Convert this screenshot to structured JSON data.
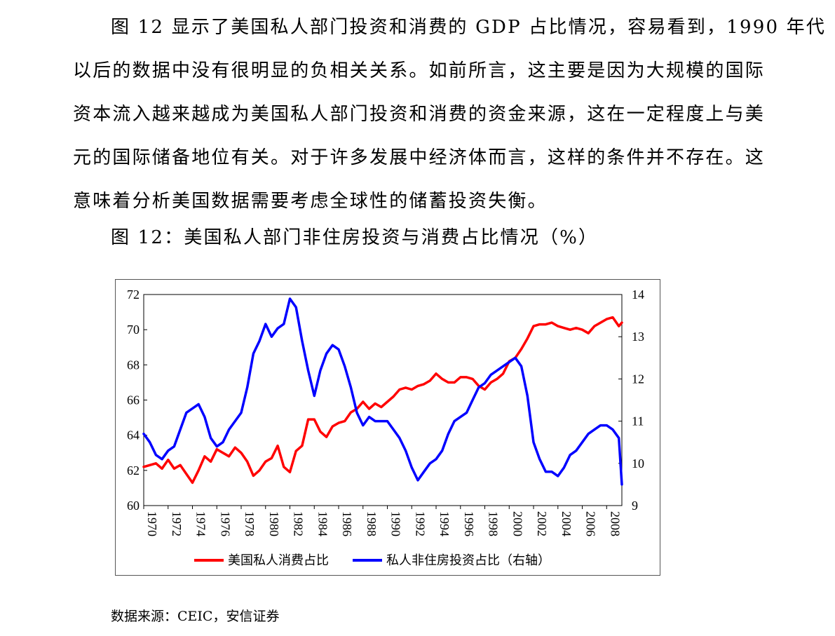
{
  "paragraph": {
    "lines": [
      "图 12 显示了美国私人部门投资和消费的 GDP 占比情况，容易看到，1990 年代",
      "以后的数据中没有很明显的负相关关系。如前所言，这主要是因为大规模的国际",
      "资本流入越来越成为美国私人部门投资和消费的资金来源，这在一定程度上与美",
      "元的国际储备地位有关。对于许多发展中经济体而言，这样的条件并不存在。这",
      "意味着分析美国数据需要考虑全球性的储蓄投资失衡。"
    ]
  },
  "figure": {
    "caption": "图 12：美国私人部门非住房投资与消费占比情况（%）",
    "source": "数据来源：CEIC，安信证券"
  },
  "chart_data": {
    "type": "line",
    "title": "",
    "xlabel": "",
    "ylabel": "",
    "x_ticks": [
      "1970",
      "1972",
      "1974",
      "1976",
      "1978",
      "1980",
      "1982",
      "1984",
      "1986",
      "1988",
      "1990",
      "1992",
      "1994",
      "1996",
      "1998",
      "2000",
      "2002",
      "2004",
      "2006",
      "2008"
    ],
    "xlim": [
      1970,
      2009.25
    ],
    "y_left": {
      "ylim": [
        60,
        72
      ],
      "ticks": [
        "60",
        "62",
        "64",
        "66",
        "68",
        "70",
        "72"
      ]
    },
    "y_right": {
      "ylim": [
        9,
        14
      ],
      "ticks": [
        "9",
        "10",
        "11",
        "12",
        "13",
        "14"
      ]
    },
    "grid": false,
    "legend_position": "bottom",
    "series": [
      {
        "name": "美国私人消费占比",
        "axis": "left",
        "color": "#ff0000",
        "x": [
          1970,
          1970.5,
          1971,
          1971.5,
          1972,
          1972.5,
          1973,
          1973.5,
          1974,
          1974.5,
          1975,
          1975.5,
          1976,
          1976.5,
          1977,
          1977.5,
          1978,
          1978.5,
          1979,
          1979.5,
          1980,
          1980.5,
          1981,
          1981.5,
          1982,
          1982.5,
          1983,
          1983.5,
          1984,
          1984.5,
          1985,
          1985.5,
          1986,
          1986.5,
          1987,
          1987.5,
          1988,
          1988.5,
          1989,
          1989.5,
          1990,
          1990.5,
          1991,
          1991.5,
          1992,
          1992.5,
          1993,
          1993.5,
          1994,
          1994.5,
          1995,
          1995.5,
          1996,
          1996.5,
          1997,
          1997.5,
          1998,
          1998.5,
          1999,
          1999.5,
          2000,
          2000.5,
          2001,
          2001.5,
          2002,
          2002.5,
          2003,
          2003.5,
          2004,
          2004.5,
          2005,
          2005.5,
          2006,
          2006.5,
          2007,
          2007.5,
          2008,
          2008.5,
          2009,
          2009.25
        ],
        "values": [
          62.2,
          62.3,
          62.4,
          62.1,
          62.6,
          62.1,
          62.3,
          61.8,
          61.3,
          62,
          62.8,
          62.5,
          63.2,
          63,
          62.8,
          63.3,
          63,
          62.5,
          61.7,
          62,
          62.5,
          62.7,
          63.4,
          62.2,
          61.9,
          63.1,
          63.4,
          64.9,
          64.9,
          64.2,
          63.9,
          64.5,
          64.7,
          64.8,
          65.3,
          65.5,
          65.9,
          65.5,
          65.8,
          65.6,
          65.9,
          66.2,
          66.6,
          66.7,
          66.6,
          66.8,
          66.9,
          67.1,
          67.5,
          67.2,
          67,
          67,
          67.3,
          67.3,
          67.2,
          66.8,
          66.6,
          67,
          67.2,
          67.5,
          68.2,
          68.4,
          68.9,
          69.5,
          70.2,
          70.3,
          70.3,
          70.4,
          70.2,
          70.1,
          70,
          70.1,
          70,
          69.8,
          70.2,
          70.4,
          70.6,
          70.7,
          70.2,
          70.4
        ]
      },
      {
        "name": "私人非住房投资占比（右轴）",
        "axis": "right",
        "color": "#0000ff",
        "x": [
          1970,
          1970.5,
          1971,
          1971.5,
          1972,
          1972.5,
          1973,
          1973.5,
          1974,
          1974.5,
          1975,
          1975.5,
          1976,
          1976.5,
          1977,
          1977.5,
          1978,
          1978.5,
          1979,
          1979.5,
          1980,
          1980.5,
          1981,
          1981.5,
          1982,
          1982.5,
          1983,
          1983.5,
          1984,
          1984.5,
          1985,
          1985.5,
          1986,
          1986.5,
          1987,
          1987.5,
          1988,
          1988.5,
          1989,
          1989.5,
          1990,
          1990.5,
          1991,
          1991.5,
          1992,
          1992.5,
          1993,
          1993.5,
          1994,
          1994.5,
          1995,
          1995.5,
          1996,
          1996.5,
          1997,
          1997.5,
          1998,
          1998.5,
          1999,
          1999.5,
          2000,
          2000.5,
          2001,
          2001.5,
          2002,
          2002.5,
          2003,
          2003.5,
          2004,
          2004.5,
          2005,
          2005.5,
          2006,
          2006.5,
          2007,
          2007.5,
          2008,
          2008.5,
          2009,
          2009.25
        ],
        "values": [
          10.7,
          10.5,
          10.2,
          10.1,
          10.3,
          10.4,
          10.8,
          11.2,
          11.3,
          11.4,
          11.1,
          10.6,
          10.4,
          10.5,
          10.8,
          11,
          11.2,
          11.8,
          12.6,
          12.9,
          13.3,
          13,
          13.2,
          13.3,
          13.9,
          13.7,
          12.9,
          12.2,
          11.6,
          12.2,
          12.6,
          12.8,
          12.7,
          12.3,
          11.8,
          11.2,
          10.9,
          11.1,
          11,
          11,
          11,
          10.8,
          10.6,
          10.3,
          9.9,
          9.6,
          9.8,
          10,
          10.1,
          10.3,
          10.7,
          11,
          11.1,
          11.2,
          11.5,
          11.8,
          11.9,
          12.1,
          12.2,
          12.3,
          12.4,
          12.5,
          12.3,
          11.6,
          10.5,
          10.1,
          9.8,
          9.8,
          9.7,
          9.9,
          10.2,
          10.3,
          10.5,
          10.7,
          10.8,
          10.9,
          10.9,
          10.8,
          10.6,
          9.5
        ]
      }
    ]
  }
}
